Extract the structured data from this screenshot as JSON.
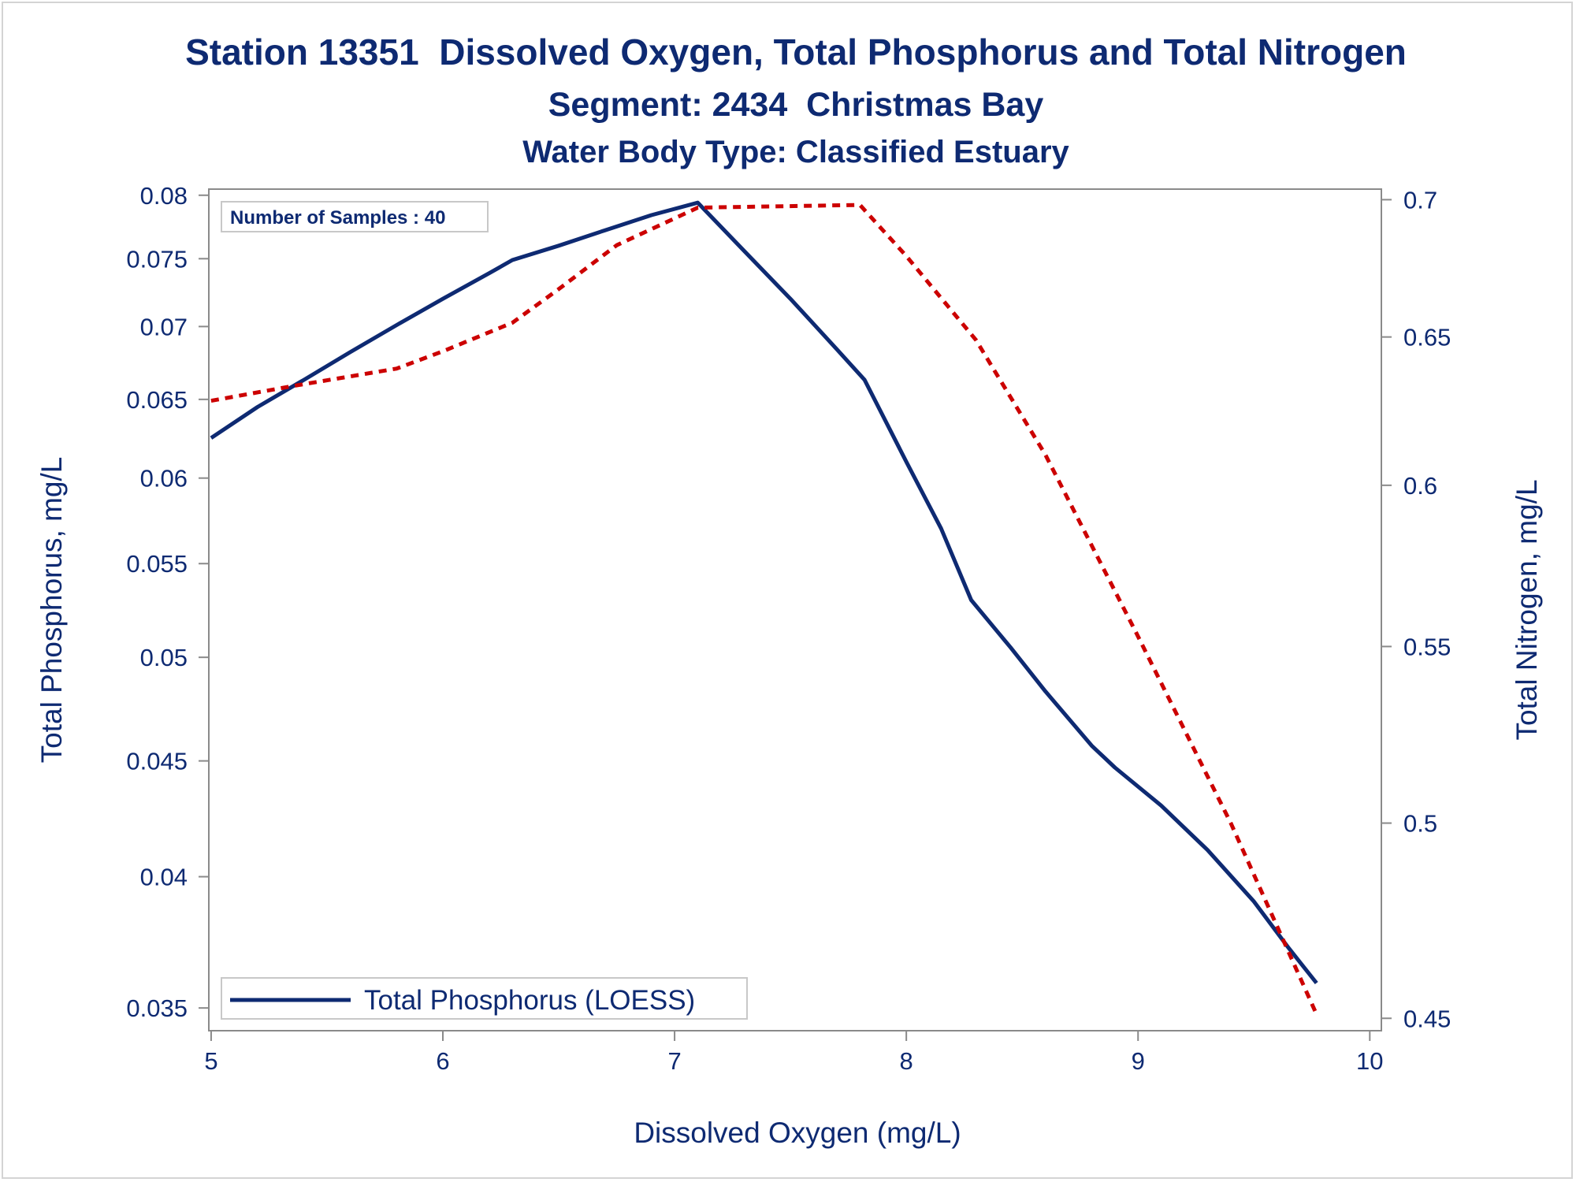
{
  "chart_data": {
    "type": "line",
    "title": "Station 13351  Dissolved Oxygen, Total Phosphorus and Total Nitrogen",
    "subtitle": "Segment: 2434  Christmas Bay",
    "subtitle2": "Water Body Type: Classified Estuary",
    "xlabel": "Dissolved Oxygen (mg/L)",
    "ylabel": "Total Phosphorus, mg/L",
    "y2label": "Total Nitrogen, mg/L",
    "annotation": "Number of Samples : 40",
    "legend_position": "bottom-left",
    "grid": false,
    "xlim": [
      4.99,
      10.05
    ],
    "ylim": [
      0.0342,
      0.0805
    ],
    "y2lim": [
      0.447,
      0.704
    ],
    "y_scale": "log",
    "y2_scale": "log",
    "x_ticks": [
      5,
      6,
      7,
      8,
      9,
      10
    ],
    "x_tick_labels": [
      "5",
      "6",
      "7",
      "8",
      "9",
      "10"
    ],
    "y_ticks": [
      0.035,
      0.04,
      0.045,
      0.05,
      0.055,
      0.06,
      0.065,
      0.07,
      0.075,
      0.08
    ],
    "y_tick_labels": [
      "0.035",
      "0.04",
      "0.045",
      "0.05",
      "0.055",
      "0.06",
      "0.065",
      "0.07",
      "0.075",
      "0.08"
    ],
    "y2_ticks": [
      0.45,
      0.5,
      0.55,
      0.6,
      0.65,
      0.7
    ],
    "y2_tick_labels": [
      "0.45",
      "0.5",
      "0.55",
      "0.6",
      "0.65",
      "0.7"
    ],
    "series": [
      {
        "name": "Total Phosphorus (LOESS)",
        "axis": "left",
        "color": "#0e2a72",
        "style": "solid",
        "x": [
          5.0,
          5.2,
          5.4,
          5.6,
          5.8,
          6.0,
          6.2,
          6.3,
          6.5,
          6.7,
          6.9,
          7.1,
          7.3,
          7.5,
          7.7,
          7.82,
          8.0,
          8.15,
          8.28,
          8.45,
          8.6,
          8.8,
          8.9,
          9.1,
          9.3,
          9.5,
          9.65,
          9.77
        ],
        "values": [
          0.0625,
          0.0645,
          0.0663,
          0.0682,
          0.0701,
          0.072,
          0.0739,
          0.0749,
          0.076,
          0.0772,
          0.0784,
          0.0794,
          0.0756,
          0.072,
          0.0684,
          0.0663,
          0.061,
          0.057,
          0.053,
          0.0505,
          0.0483,
          0.0457,
          0.0447,
          0.043,
          0.0411,
          0.039,
          0.0372,
          0.0359
        ]
      },
      {
        "name": "",
        "axis": "right",
        "color": "#cc0000",
        "style": "dashed",
        "x": [
          5.0,
          5.35,
          5.8,
          6.0,
          6.3,
          6.5,
          6.75,
          7.1,
          7.8,
          8.0,
          8.3,
          8.6,
          9.0,
          9.4,
          9.77
        ],
        "values": [
          0.628,
          0.633,
          0.639,
          0.645,
          0.655,
          0.667,
          0.683,
          0.697,
          0.698,
          0.679,
          0.649,
          0.61,
          0.553,
          0.5,
          0.451
        ]
      }
    ]
  }
}
